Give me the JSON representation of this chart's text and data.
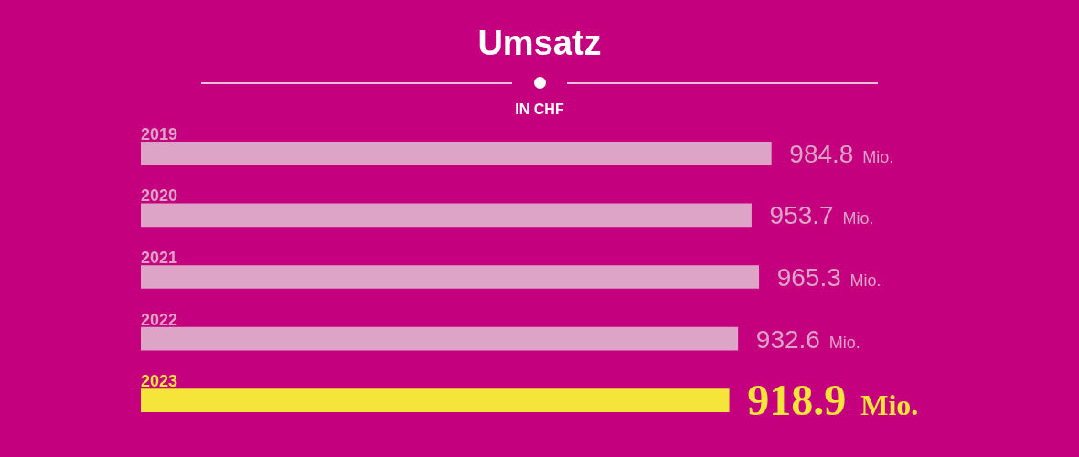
{
  "chart_data": {
    "type": "bar",
    "orientation": "horizontal",
    "title": "Umsatz",
    "subtitle": "IN CHF",
    "categories": [
      "2019",
      "2020",
      "2021",
      "2022",
      "2023"
    ],
    "values": [
      984.8,
      953.7,
      965.3,
      932.6,
      918.9
    ],
    "value_labels": [
      "984.8 Mio.",
      "953.7 Mio.",
      "965.3 Mio.",
      "932.6 Mio.",
      "918.9 Mio."
    ],
    "colors": [
      "#dea4c8",
      "#dea4c8",
      "#dea4c8",
      "#dea4c8",
      "#f5e43a"
    ],
    "tick_labels": false,
    "legend": false
  }
}
